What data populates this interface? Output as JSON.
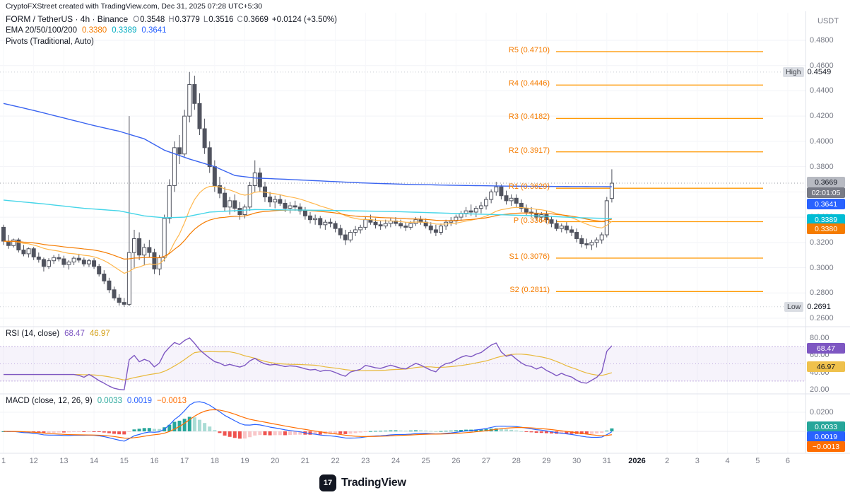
{
  "attribution": "CryptoFXStreet created with TradingView.com, Dec 31, 2025 07:28 UTC+5:30",
  "header": {
    "symbol_line": "FORM / TetherUS · 4h · Binance",
    "ohlc": [
      {
        "k": "O",
        "v": "0.3548"
      },
      {
        "k": "H",
        "v": "0.3779"
      },
      {
        "k": "L",
        "v": "0.3516"
      },
      {
        "k": "C",
        "v": "0.3669"
      }
    ],
    "change": "+0.0124 (+3.50%)",
    "ema_label": "EMA 20/50/100/200",
    "ema_values": [
      "0.3380",
      "0.3389",
      "0.3641"
    ],
    "pivots_label": "Pivots (Traditional, Auto)"
  },
  "price_axis": {
    "currency": "USDT",
    "ticks": [
      "0.4800",
      "0.4600",
      "0.4400",
      "0.4200",
      "0.4000",
      "0.3800",
      "0.3600",
      "0.3400",
      "0.3200",
      "0.3000",
      "0.2800",
      "0.2600"
    ],
    "high_label": "High",
    "high_value": "0.4549",
    "low_label": "Low",
    "low_value": "0.2691",
    "last_price": "0.3669",
    "countdown": "02:01:05",
    "ema200_badge": "0.3641",
    "ema100_badge": "0.3389",
    "ema50_badge": "0.3380"
  },
  "rsi": {
    "title": "RSI (14, close)",
    "value": "68.47",
    "ma_value": "46.97",
    "axis": [
      "80.00",
      "60.00",
      "40.00",
      "20.00"
    ]
  },
  "macd": {
    "title": "MACD (close, 12, 26, 9)",
    "hist_value": "0.0033",
    "macd_value": "0.0019",
    "signal_value": "−0.0013",
    "axis": [
      "0.0200",
      "0.0000"
    ]
  },
  "time_axis": {
    "labels": [
      "1",
      "12",
      "13",
      "14",
      "15",
      "16",
      "17",
      "18",
      "19",
      "20",
      "21",
      "22",
      "23",
      "24",
      "25",
      "26",
      "27",
      "28",
      "29",
      "30",
      "31",
      "2026",
      "2",
      "3",
      "4",
      "5",
      "6"
    ],
    "year_label": "2026"
  },
  "footer": {
    "brand": "TradingView",
    "logo_mark": "17"
  },
  "colors": {
    "up_candle": "#ffffff",
    "down_candle": "#50535e",
    "ema20": "#ffb74d",
    "ema50": "#f57c00",
    "ema100": "#45d5e8",
    "ema200": "#3a64f0",
    "pivot": "#ff9800",
    "rsi": "#7e57c2",
    "rsi_ma": "#e8b93c",
    "macd": "#2962ff",
    "signal": "#ff6d00",
    "hist_pos": "#26a69a",
    "hist_pos_light": "#aadcd5",
    "hist_neg": "#ef5350",
    "hist_neg_light": "#f9c6c8",
    "grid": "#f2f3f7",
    "separator": "#e0e3eb",
    "last_price_line": "#9598a1"
  },
  "chart_data": {
    "type": "candlestick",
    "symbol": "FORM/USDT",
    "exchange": "Binance",
    "interval": "4h",
    "x_range_days": [
      "Dec 11, 2025",
      "Jan 6, 2026"
    ],
    "y_range": [
      0.26,
      0.48
    ],
    "session_high": 0.4549,
    "session_low": 0.2691,
    "last_price": 0.3669,
    "ohlc_current": {
      "open": 0.3548,
      "high": 0.3779,
      "low": 0.3516,
      "close": 0.3669,
      "change": 0.0124,
      "change_pct": 3.5
    },
    "pivots": [
      {
        "label": "R5 (0.4710)",
        "value": 0.471
      },
      {
        "label": "R4 (0.4446)",
        "value": 0.4446
      },
      {
        "label": "R3 (0.4182)",
        "value": 0.4182
      },
      {
        "label": "R2 (0.3917)",
        "value": 0.3917
      },
      {
        "label": "R1 (0.3629)",
        "value": 0.3629
      },
      {
        "label": "P (0.3364)",
        "value": 0.3364
      },
      {
        "label": "S1 (0.3076)",
        "value": 0.3076
      },
      {
        "label": "S2 (0.2811)",
        "value": 0.2811
      }
    ],
    "indicators": {
      "ema_lengths": [
        20,
        50,
        100,
        200
      ],
      "ema_last": {
        "ema50": 0.338,
        "ema100": 0.3389,
        "ema200": 0.3641
      },
      "rsi": {
        "length": 14,
        "value": 68.47,
        "ma": 46.97,
        "bands": [
          30,
          70
        ],
        "axis_range": [
          20,
          80
        ]
      },
      "macd": {
        "fast": 12,
        "slow": 26,
        "signal_len": 9,
        "macd": 0.0019,
        "signal": -0.0013,
        "histogram": 0.0033,
        "axis_range": [
          0,
          0.02
        ]
      }
    },
    "candles": [
      [
        0.332,
        0.334,
        0.318,
        0.321
      ],
      [
        0.321,
        0.326,
        0.315,
        0.3175
      ],
      [
        0.3175,
        0.323,
        0.316,
        0.322
      ],
      [
        0.322,
        0.3235,
        0.312,
        0.314
      ],
      [
        0.314,
        0.318,
        0.309,
        0.311
      ],
      [
        0.311,
        0.316,
        0.308,
        0.315
      ],
      [
        0.315,
        0.3165,
        0.306,
        0.3085
      ],
      [
        0.3085,
        0.312,
        0.304,
        0.3065
      ],
      [
        0.3065,
        0.308,
        0.297,
        0.301
      ],
      [
        0.301,
        0.3075,
        0.299,
        0.3055
      ],
      [
        0.3055,
        0.31,
        0.303,
        0.308
      ],
      [
        0.308,
        0.311,
        0.305,
        0.307
      ],
      [
        0.307,
        0.3095,
        0.3,
        0.3025
      ],
      [
        0.3025,
        0.306,
        0.2985,
        0.3045
      ],
      [
        0.3045,
        0.309,
        0.302,
        0.3075
      ],
      [
        0.3075,
        0.311,
        0.304,
        0.306
      ],
      [
        0.306,
        0.308,
        0.301,
        0.303
      ],
      [
        0.303,
        0.307,
        0.3005,
        0.3055
      ],
      [
        0.3055,
        0.3075,
        0.299,
        0.301
      ],
      [
        0.301,
        0.303,
        0.293,
        0.295
      ],
      [
        0.295,
        0.298,
        0.287,
        0.2895
      ],
      [
        0.2895,
        0.292,
        0.28,
        0.2825
      ],
      [
        0.2825,
        0.285,
        0.274,
        0.276
      ],
      [
        0.276,
        0.279,
        0.27,
        0.2725
      ],
      [
        0.2725,
        0.276,
        0.2691,
        0.271
      ],
      [
        0.271,
        0.42,
        0.2695,
        0.312
      ],
      [
        0.312,
        0.33,
        0.3,
        0.323
      ],
      [
        0.323,
        0.328,
        0.306,
        0.31
      ],
      [
        0.31,
        0.319,
        0.302,
        0.316
      ],
      [
        0.316,
        0.322,
        0.308,
        0.312
      ],
      [
        0.312,
        0.315,
        0.295,
        0.299
      ],
      [
        0.299,
        0.31,
        0.294,
        0.308
      ],
      [
        0.308,
        0.342,
        0.305,
        0.339
      ],
      [
        0.339,
        0.37,
        0.335,
        0.365
      ],
      [
        0.365,
        0.4,
        0.36,
        0.395
      ],
      [
        0.395,
        0.405,
        0.382,
        0.39
      ],
      [
        0.39,
        0.425,
        0.388,
        0.42
      ],
      [
        0.42,
        0.4549,
        0.415,
        0.445
      ],
      [
        0.445,
        0.452,
        0.425,
        0.43
      ],
      [
        0.43,
        0.438,
        0.405,
        0.41
      ],
      [
        0.41,
        0.418,
        0.39,
        0.395
      ],
      [
        0.395,
        0.4,
        0.375,
        0.38
      ],
      [
        0.38,
        0.385,
        0.36,
        0.365
      ],
      [
        0.365,
        0.372,
        0.355,
        0.359
      ],
      [
        0.359,
        0.364,
        0.345,
        0.348
      ],
      [
        0.348,
        0.356,
        0.342,
        0.353
      ],
      [
        0.353,
        0.358,
        0.344,
        0.347
      ],
      [
        0.347,
        0.352,
        0.338,
        0.342
      ],
      [
        0.342,
        0.35,
        0.339,
        0.348
      ],
      [
        0.348,
        0.368,
        0.345,
        0.365
      ],
      [
        0.365,
        0.385,
        0.36,
        0.375
      ],
      [
        0.375,
        0.379,
        0.36,
        0.364
      ],
      [
        0.364,
        0.368,
        0.352,
        0.356
      ],
      [
        0.356,
        0.36,
        0.348,
        0.352
      ],
      [
        0.352,
        0.357,
        0.347,
        0.354
      ],
      [
        0.354,
        0.358,
        0.349,
        0.351
      ],
      [
        0.351,
        0.354,
        0.344,
        0.347
      ],
      [
        0.347,
        0.352,
        0.343,
        0.349
      ],
      [
        0.349,
        0.353,
        0.345,
        0.348
      ],
      [
        0.348,
        0.351,
        0.342,
        0.345
      ],
      [
        0.345,
        0.348,
        0.338,
        0.341
      ],
      [
        0.341,
        0.344,
        0.335,
        0.338
      ],
      [
        0.338,
        0.342,
        0.334,
        0.339
      ],
      [
        0.339,
        0.341,
        0.331,
        0.334
      ],
      [
        0.334,
        0.338,
        0.33,
        0.336
      ],
      [
        0.336,
        0.339,
        0.332,
        0.335
      ],
      [
        0.335,
        0.337,
        0.328,
        0.331
      ],
      [
        0.331,
        0.334,
        0.323,
        0.326
      ],
      [
        0.326,
        0.33,
        0.318,
        0.322
      ],
      [
        0.322,
        0.33,
        0.32,
        0.328
      ],
      [
        0.328,
        0.333,
        0.325,
        0.33
      ],
      [
        0.33,
        0.334,
        0.327,
        0.332
      ],
      [
        0.332,
        0.34,
        0.33,
        0.338
      ],
      [
        0.338,
        0.342,
        0.334,
        0.336
      ],
      [
        0.336,
        0.339,
        0.331,
        0.334
      ],
      [
        0.334,
        0.337,
        0.33,
        0.333
      ],
      [
        0.333,
        0.338,
        0.331,
        0.335
      ],
      [
        0.335,
        0.339,
        0.332,
        0.337
      ],
      [
        0.337,
        0.34,
        0.333,
        0.335
      ],
      [
        0.335,
        0.338,
        0.331,
        0.333
      ],
      [
        0.333,
        0.336,
        0.329,
        0.332
      ],
      [
        0.332,
        0.337,
        0.33,
        0.335
      ],
      [
        0.335,
        0.34,
        0.333,
        0.338
      ],
      [
        0.338,
        0.341,
        0.334,
        0.336
      ],
      [
        0.336,
        0.339,
        0.331,
        0.333
      ],
      [
        0.333,
        0.336,
        0.327,
        0.33
      ],
      [
        0.33,
        0.334,
        0.325,
        0.328
      ],
      [
        0.328,
        0.335,
        0.326,
        0.333
      ],
      [
        0.333,
        0.338,
        0.33,
        0.336
      ],
      [
        0.336,
        0.34,
        0.333,
        0.337
      ],
      [
        0.337,
        0.342,
        0.334,
        0.34
      ],
      [
        0.34,
        0.345,
        0.337,
        0.343
      ],
      [
        0.343,
        0.348,
        0.34,
        0.345
      ],
      [
        0.345,
        0.35,
        0.341,
        0.344
      ],
      [
        0.344,
        0.349,
        0.34,
        0.347
      ],
      [
        0.347,
        0.352,
        0.343,
        0.349
      ],
      [
        0.349,
        0.356,
        0.346,
        0.354
      ],
      [
        0.354,
        0.362,
        0.351,
        0.36
      ],
      [
        0.36,
        0.368,
        0.357,
        0.364
      ],
      [
        0.364,
        0.366,
        0.354,
        0.357
      ],
      [
        0.357,
        0.361,
        0.35,
        0.353
      ],
      [
        0.353,
        0.358,
        0.349,
        0.355
      ],
      [
        0.355,
        0.358,
        0.348,
        0.351
      ],
      [
        0.351,
        0.354,
        0.344,
        0.347
      ],
      [
        0.347,
        0.35,
        0.341,
        0.344
      ],
      [
        0.344,
        0.348,
        0.34,
        0.343
      ],
      [
        0.343,
        0.346,
        0.337,
        0.34
      ],
      [
        0.34,
        0.344,
        0.336,
        0.342
      ],
      [
        0.342,
        0.345,
        0.335,
        0.338
      ],
      [
        0.338,
        0.341,
        0.332,
        0.335
      ],
      [
        0.335,
        0.338,
        0.329,
        0.331
      ],
      [
        0.331,
        0.335,
        0.328,
        0.333
      ],
      [
        0.333,
        0.336,
        0.327,
        0.33
      ],
      [
        0.33,
        0.333,
        0.325,
        0.328
      ],
      [
        0.328,
        0.331,
        0.32,
        0.323
      ],
      [
        0.323,
        0.326,
        0.316,
        0.319
      ],
      [
        0.319,
        0.323,
        0.315,
        0.318
      ],
      [
        0.318,
        0.322,
        0.314,
        0.32
      ],
      [
        0.32,
        0.324,
        0.316,
        0.322
      ],
      [
        0.322,
        0.328,
        0.319,
        0.326
      ],
      [
        0.326,
        0.356,
        0.324,
        0.353
      ],
      [
        0.3548,
        0.3779,
        0.3516,
        0.3669
      ]
    ],
    "ema100_points": [
      [
        0,
        0.3535
      ],
      [
        8,
        0.3505
      ],
      [
        16,
        0.347
      ],
      [
        23,
        0.345
      ],
      [
        28,
        0.341
      ],
      [
        32,
        0.3395
      ],
      [
        36,
        0.34
      ],
      [
        41,
        0.344
      ],
      [
        50,
        0.346
      ],
      [
        62,
        0.3455
      ],
      [
        77,
        0.3445
      ],
      [
        91,
        0.3428
      ],
      [
        105,
        0.3412
      ],
      [
        115,
        0.3395
      ],
      [
        121,
        0.3389
      ]
    ],
    "ema200_points": [
      [
        0,
        0.43
      ],
      [
        6,
        0.4245
      ],
      [
        12,
        0.4185
      ],
      [
        18,
        0.4125
      ],
      [
        23,
        0.408
      ],
      [
        28,
        0.402
      ],
      [
        32,
        0.393
      ],
      [
        37,
        0.386
      ],
      [
        42,
        0.38
      ],
      [
        46,
        0.373
      ],
      [
        50,
        0.371
      ],
      [
        56,
        0.37
      ],
      [
        64,
        0.3685
      ],
      [
        72,
        0.367
      ],
      [
        80,
        0.366
      ],
      [
        90,
        0.3652
      ],
      [
        100,
        0.3646
      ],
      [
        110,
        0.3643
      ],
      [
        121,
        0.3641
      ]
    ]
  }
}
